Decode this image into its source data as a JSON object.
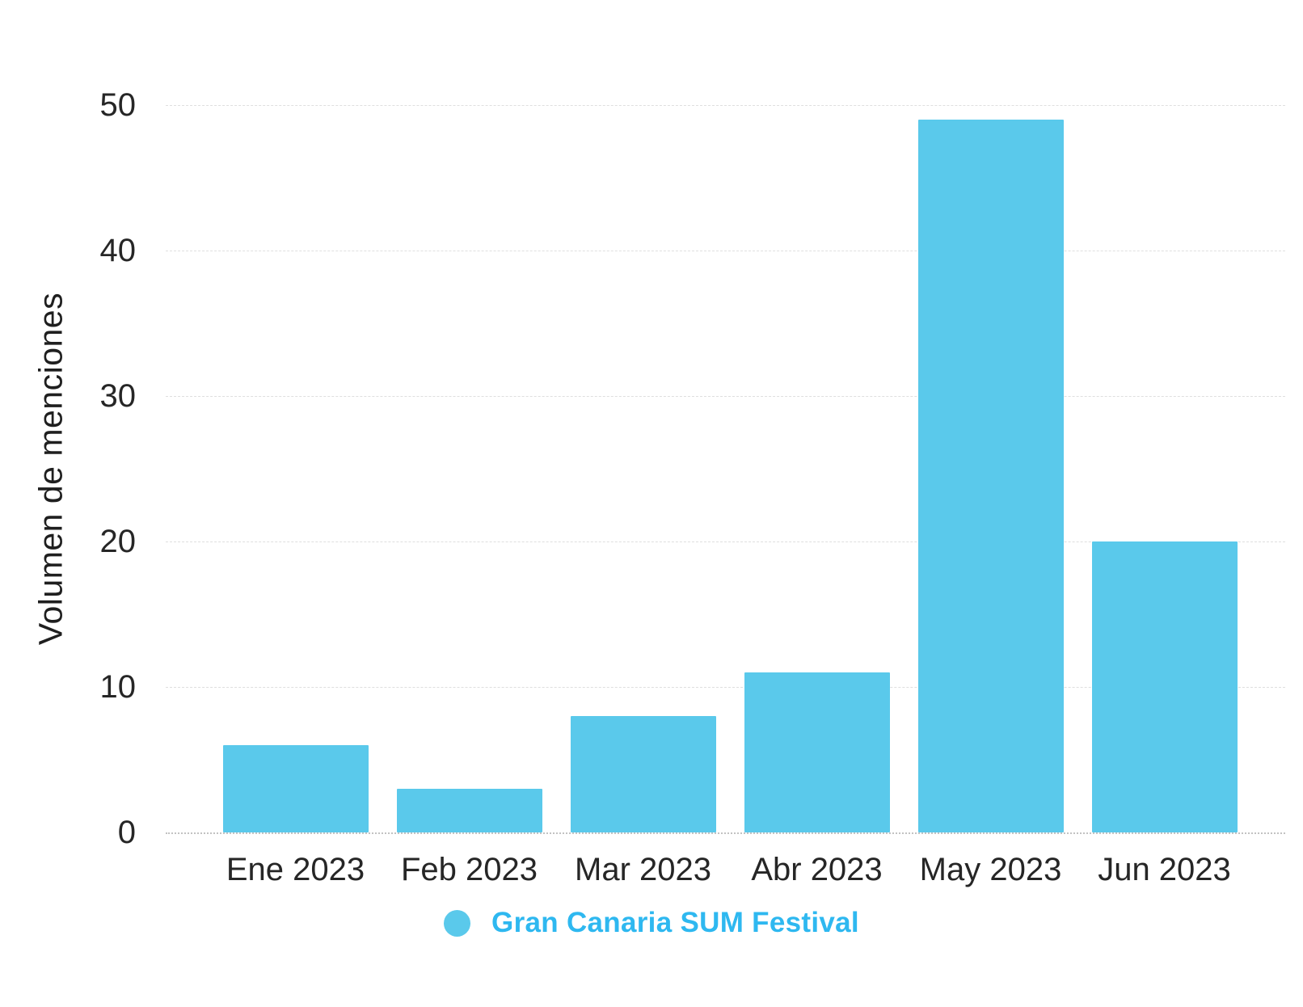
{
  "chart_data": {
    "type": "bar",
    "title": "",
    "categories": [
      "Ene 2023",
      "Feb 2023",
      "Mar 2023",
      "Abr 2023",
      "May 2023",
      "Jun 2023"
    ],
    "series": [
      {
        "name": "Gran Canaria SUM Festival",
        "values": [
          6,
          3,
          8,
          11,
          49,
          20
        ],
        "color": "#5AC9EB"
      }
    ],
    "xlabel": "",
    "ylabel": "Volumen de menciones",
    "ylim": [
      0,
      50
    ],
    "yticks": [
      0,
      10,
      20,
      30,
      40,
      50
    ],
    "grid": true,
    "legend_position": "bottom"
  },
  "legend": {
    "label": "Gran Canaria SUM Festival",
    "dot_color": "#5AC9EB",
    "text_color": "#2EB8F0"
  },
  "colors": {
    "bar": "#5AC9EB",
    "axis_text": "#262626",
    "gridline": "#dfdfdf",
    "zero_line": "#c2c2c2",
    "background": "#ffffff"
  }
}
